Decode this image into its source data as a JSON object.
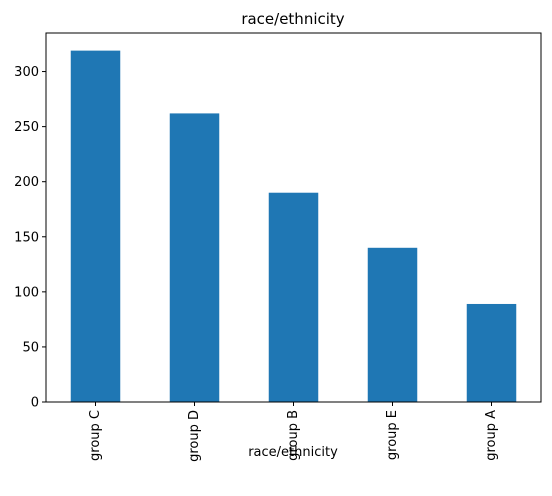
{
  "chart_data": {
    "type": "bar",
    "title": "race/ethnicity",
    "xlabel": "race/ethnicity",
    "ylabel": "",
    "categories": [
      "group C",
      "group D",
      "group B",
      "group E",
      "group A"
    ],
    "values": [
      319,
      262,
      190,
      140,
      89
    ],
    "ylim": [
      0,
      335
    ],
    "yticks": [
      0,
      50,
      100,
      150,
      200,
      250,
      300
    ],
    "grid": false,
    "bar_color": "#1f77b4"
  }
}
